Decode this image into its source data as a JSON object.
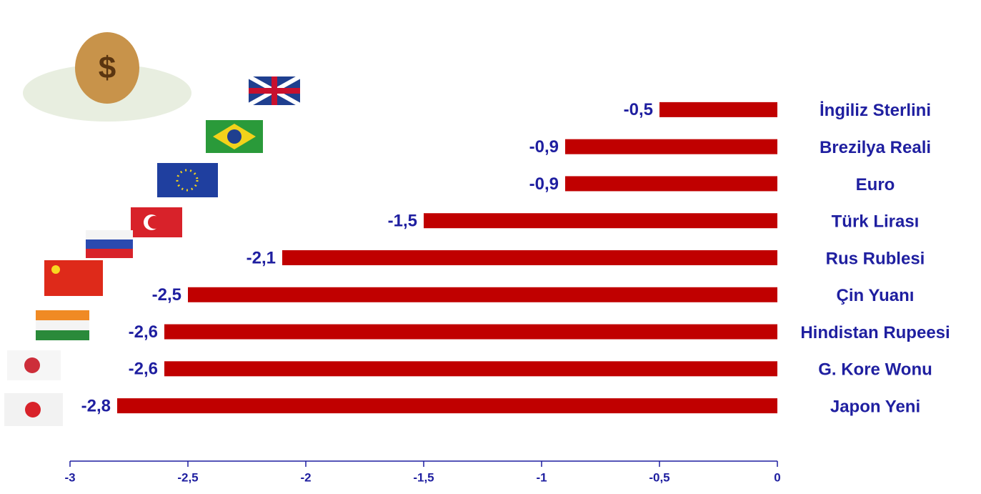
{
  "chart_data": {
    "type": "bar",
    "orientation": "horizontal",
    "categories": [
      "İngiliz Sterlini",
      "Brezilya Reali",
      "Euro",
      "Türk Lirası",
      "Rus Rublesi",
      "Çin Yuanı",
      "Hindistan Rupeesi",
      "G. Kore Wonu",
      "Japon Yeni"
    ],
    "values": [
      -0.5,
      -0.9,
      -0.9,
      -1.5,
      -2.1,
      -2.5,
      -2.6,
      -2.6,
      -2.8
    ],
    "value_labels": [
      "-0,5",
      "-0,9",
      "-0,9",
      "-1,5",
      "-2,1",
      "-2,5",
      "-2,6",
      "-2,6",
      "-2,8"
    ],
    "color": "#c00000",
    "xlim": [
      -3,
      0
    ],
    "xticks": [
      -3,
      {
        "value": -2.5,
        "label": "-2,5"
      },
      -2,
      {
        "value": -1.5,
        "label": "-1,5"
      },
      -1,
      {
        "value": -0.5,
        "label": "-0,5"
      },
      0
    ],
    "grid": false
  }
}
